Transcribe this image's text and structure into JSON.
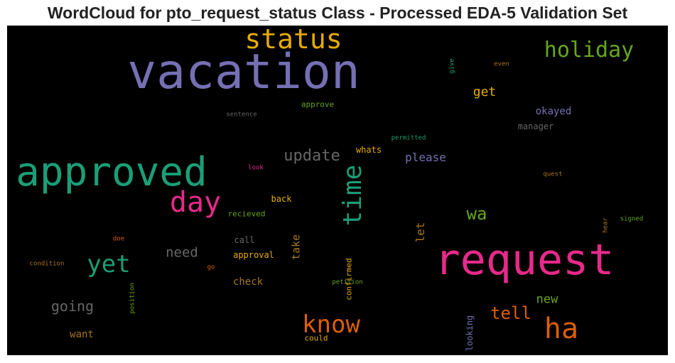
{
  "chart_data": {
    "type": "wordcloud",
    "title": "WordCloud for pto_request_status Class - Processed EDA-5 Validation Set",
    "background": "#000000",
    "words": [
      {
        "text": "vacation",
        "size": 68,
        "color": "#7570b3"
      },
      {
        "text": "request",
        "size": 60,
        "color": "#e7298a"
      },
      {
        "text": "approved",
        "size": 56,
        "color": "#1b9e77"
      },
      {
        "text": "status",
        "size": 38,
        "color": "#e6ab02"
      },
      {
        "text": "day",
        "size": 40,
        "color": "#e7298a"
      },
      {
        "text": "ha",
        "size": 40,
        "color": "#d95f02"
      },
      {
        "text": "time",
        "size": 36,
        "color": "#1b9e77",
        "vertical": true
      },
      {
        "text": "know",
        "size": 34,
        "color": "#d95f02"
      },
      {
        "text": "yet",
        "size": 34,
        "color": "#1b9e77"
      },
      {
        "text": "holiday",
        "size": 30,
        "color": "#66a61e"
      },
      {
        "text": "wa",
        "size": 24,
        "color": "#66a61e"
      },
      {
        "text": "update",
        "size": 22,
        "color": "#666666"
      },
      {
        "text": "tell",
        "size": 24,
        "color": "#d95f02"
      },
      {
        "text": "get",
        "size": 18,
        "color": "#e6ab02"
      },
      {
        "text": "going",
        "size": 20,
        "color": "#666666"
      },
      {
        "text": "need",
        "size": 19,
        "color": "#666666"
      },
      {
        "text": "new",
        "size": 17,
        "color": "#66a61e"
      },
      {
        "text": "please",
        "size": 16,
        "color": "#7570b3"
      },
      {
        "text": "okayed",
        "size": 14,
        "color": "#7570b3"
      },
      {
        "text": "let",
        "size": 16,
        "color": "#a6761d",
        "vertical": true
      },
      {
        "text": "take",
        "size": 15,
        "color": "#a6761d",
        "vertical": true
      },
      {
        "text": "check",
        "size": 14,
        "color": "#a6761d"
      },
      {
        "text": "want",
        "size": 14,
        "color": "#a6761d"
      },
      {
        "text": "manager",
        "size": 12,
        "color": "#666666"
      },
      {
        "text": "whats",
        "size": 12,
        "color": "#e6ab02"
      },
      {
        "text": "approval",
        "size": 12,
        "color": "#e6ab02"
      },
      {
        "text": "approve",
        "size": 11,
        "color": "#66a61e"
      },
      {
        "text": "back",
        "size": 12,
        "color": "#e6ab02"
      },
      {
        "text": "call",
        "size": 12,
        "color": "#666666"
      },
      {
        "text": "could",
        "size": 11,
        "color": "#e6ab02"
      },
      {
        "text": "looking",
        "size": 12,
        "color": "#7570b3",
        "vertical": true
      },
      {
        "text": "confirmed",
        "size": 11,
        "color": "#e6ab02",
        "vertical": true
      },
      {
        "text": "recieved",
        "size": 11,
        "color": "#66a61e"
      },
      {
        "text": "permitted",
        "size": 9,
        "color": "#1b9e77"
      },
      {
        "text": "petition",
        "size": 9,
        "color": "#66a61e"
      },
      {
        "text": "sentence",
        "size": 9,
        "color": "#666666"
      },
      {
        "text": "look",
        "size": 9,
        "color": "#e7298a"
      },
      {
        "text": "quest",
        "size": 9,
        "color": "#a6761d"
      },
      {
        "text": "doe",
        "size": 9,
        "color": "#d95f02"
      },
      {
        "text": "condition",
        "size": 9,
        "color": "#a6761d"
      },
      {
        "text": "go",
        "size": 9,
        "color": "#d95f02"
      },
      {
        "text": "give",
        "size": 9,
        "color": "#1b9e77",
        "vertical": true
      },
      {
        "text": "even",
        "size": 9,
        "color": "#a6761d"
      },
      {
        "text": "hear",
        "size": 9,
        "color": "#a6761d",
        "vertical": true
      },
      {
        "text": "signed",
        "size": 9,
        "color": "#66a61e"
      },
      {
        "text": "position",
        "size": 9,
        "color": "#66a61e",
        "vertical": true
      }
    ]
  }
}
